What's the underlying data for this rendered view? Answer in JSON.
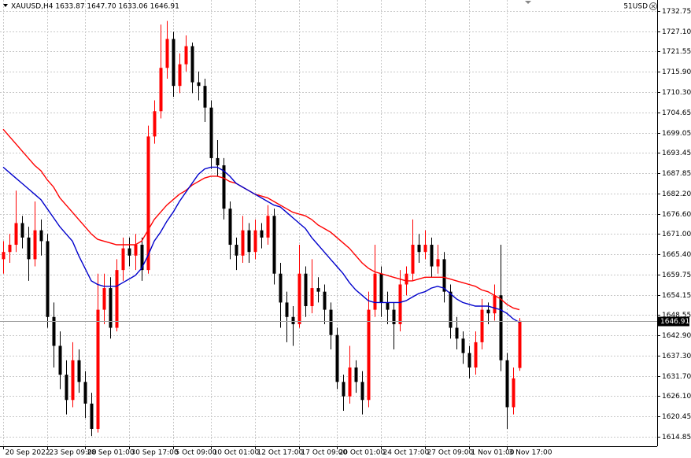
{
  "chart_data": {
    "type": "candlestick",
    "title": "XAUUSD,H4 1633.87 1647.70 1633.06 1646.91",
    "account_label": "51USD",
    "up_color": "#ff0000",
    "down_color": "#000000",
    "grid": true,
    "ylim": [
      1612.2,
      1735.8
    ],
    "yticks": [
      1732.75,
      {
        "value": 1727.1,
        "label": "1727.10"
      },
      1721.55,
      {
        "value": 1715.9,
        "label": "1715.90"
      },
      {
        "value": 1710.3,
        "label": "1710.30"
      },
      1704.65,
      1699.05,
      1693.45,
      1687.85,
      {
        "value": 1682.2,
        "label": "1682.20"
      },
      {
        "value": 1676.6,
        "label": "1676.60"
      },
      {
        "value": 1671,
        "label": "1671.00"
      },
      {
        "value": 1665.4,
        "label": "1665.40"
      },
      1659.75,
      1654.15,
      1648.55,
      {
        "value": 1642.9,
        "label": "1642.90"
      },
      {
        "value": 1637.3,
        "label": "1637.30"
      },
      {
        "value": 1631.7,
        "label": "1631.70"
      },
      {
        "value": 1626.1,
        "label": "1626.10"
      },
      1620.45,
      1614.85
    ],
    "categories": [
      "20 Sep 2022",
      null,
      null,
      null,
      null,
      null,
      null,
      "23 Sep 09:00",
      null,
      null,
      null,
      null,
      null,
      "28 Sep 01:00",
      null,
      null,
      null,
      null,
      null,
      null,
      "30 Sep 17:00",
      null,
      null,
      null,
      null,
      null,
      null,
      "5 Oct 09:00",
      null,
      null,
      null,
      null,
      null,
      "10 Oct 01:00",
      null,
      null,
      null,
      null,
      null,
      null,
      "12 Oct 17:00",
      null,
      null,
      null,
      null,
      null,
      null,
      "17 Oct 09:00",
      null,
      null,
      null,
      null,
      null,
      "20 Oct 01:00",
      null,
      null,
      null,
      null,
      null,
      null,
      "24 Oct 17:00",
      null,
      null,
      null,
      null,
      null,
      null,
      "27 Oct 09:00",
      null,
      null,
      null,
      null,
      null,
      null,
      "1 Nov 01:00",
      null,
      null,
      null,
      null,
      null,
      "3 Nov 17:00",
      null,
      null
    ],
    "ohlc": [
      [
        1664,
        1669,
        1660,
        1666
      ],
      [
        1666,
        1671,
        1663,
        1668
      ],
      [
        1668,
        1683,
        1666,
        1674
      ],
      [
        1674,
        1676,
        1667,
        1670
      ],
      [
        1670,
        1673,
        1658,
        1664
      ],
      [
        1664,
        1680,
        1662,
        1672
      ],
      [
        1672,
        1675,
        1665,
        1669
      ],
      [
        1669,
        1671,
        1645,
        1648
      ],
      [
        1648,
        1652,
        1634,
        1640
      ],
      [
        1640,
        1644,
        1628,
        1632
      ],
      [
        1632,
        1636,
        1621,
        1625
      ],
      [
        1625,
        1641,
        1623,
        1636
      ],
      [
        1636,
        1639,
        1627,
        1630
      ],
      [
        1630,
        1633,
        1620,
        1624
      ],
      [
        1624,
        1627,
        1615,
        1617
      ],
      [
        1617,
        1660,
        1616,
        1650
      ],
      [
        1650,
        1660,
        1646,
        1656
      ],
      [
        1656,
        1659,
        1642,
        1645
      ],
      [
        1645,
        1664,
        1644,
        1661
      ],
      [
        1661,
        1670,
        1658,
        1667
      ],
      [
        1667,
        1670,
        1662,
        1665
      ],
      [
        1665,
        1671,
        1661,
        1668
      ],
      [
        1668,
        1670,
        1658,
        1661
      ],
      [
        1661,
        1701,
        1660,
        1698
      ],
      [
        1698,
        1708,
        1696,
        1705
      ],
      [
        1705,
        1729,
        1703,
        1717
      ],
      [
        1717,
        1730,
        1714,
        1725
      ],
      [
        1725,
        1727,
        1709,
        1712
      ],
      [
        1712,
        1721,
        1710,
        1718
      ],
      [
        1718,
        1726,
        1716,
        1723
      ],
      [
        1723,
        1724,
        1710,
        1713
      ],
      [
        1713,
        1716,
        1708,
        1712
      ],
      [
        1712,
        1714,
        1702,
        1706
      ],
      [
        1706,
        1708,
        1689,
        1692
      ],
      [
        1692,
        1697,
        1687,
        1690
      ],
      [
        1690,
        1692,
        1675,
        1678
      ],
      [
        1678,
        1680,
        1664,
        1668
      ],
      [
        1668,
        1670,
        1661,
        1665
      ],
      [
        1665,
        1676,
        1663,
        1672
      ],
      [
        1672,
        1674,
        1663,
        1666
      ],
      [
        1666,
        1675,
        1664,
        1672
      ],
      [
        1672,
        1674,
        1667,
        1670
      ],
      [
        1670,
        1679,
        1668,
        1676
      ],
      [
        1676,
        1678,
        1657,
        1660
      ],
      [
        1660,
        1663,
        1645,
        1652
      ],
      [
        1652,
        1655,
        1641,
        1648
      ],
      [
        1648,
        1651,
        1640,
        1646
      ],
      [
        1646,
        1668,
        1645,
        1660
      ],
      [
        1660,
        1662,
        1648,
        1651
      ],
      [
        1651,
        1664,
        1649,
        1656
      ],
      [
        1656,
        1659,
        1652,
        1655
      ],
      [
        1655,
        1657,
        1646,
        1650
      ],
      [
        1650,
        1652,
        1639,
        1643
      ],
      [
        1643,
        1645,
        1628,
        1630
      ],
      [
        1630,
        1632,
        1622,
        1626
      ],
      [
        1626,
        1640,
        1624,
        1634
      ],
      [
        1634,
        1636,
        1627,
        1630
      ],
      [
        1630,
        1633,
        1621,
        1625
      ],
      [
        1625,
        1655,
        1623,
        1650
      ],
      [
        1650,
        1668,
        1648,
        1660
      ],
      [
        1660,
        1662,
        1648,
        1652
      ],
      [
        1652,
        1655,
        1646,
        1650
      ],
      [
        1650,
        1652,
        1639,
        1646
      ],
      [
        1646,
        1661,
        1644,
        1657
      ],
      [
        1657,
        1662,
        1654,
        1660
      ],
      [
        1660,
        1675,
        1658,
        1668
      ],
      [
        1668,
        1671,
        1663,
        1666
      ],
      [
        1666,
        1672,
        1664,
        1668
      ],
      [
        1668,
        1670,
        1659,
        1662
      ],
      [
        1662,
        1668,
        1660,
        1664
      ],
      [
        1664,
        1666,
        1652,
        1655
      ],
      [
        1655,
        1657,
        1642,
        1645
      ],
      [
        1645,
        1648,
        1639,
        1642
      ],
      [
        1642,
        1644,
        1635,
        1638
      ],
      [
        1638,
        1640,
        1631,
        1634
      ],
      [
        1634,
        1644,
        1632,
        1641
      ],
      [
        1641,
        1653,
        1639,
        1650
      ],
      [
        1650,
        1652,
        1646,
        1649
      ],
      [
        1649,
        1657,
        1647,
        1654
      ],
      [
        1654,
        1668,
        1633,
        1636
      ],
      [
        1636,
        1638,
        1617,
        1623
      ],
      [
        1623,
        1634,
        1621,
        1631
      ],
      [
        1633.87,
        1647.7,
        1633.06,
        1646.91
      ]
    ],
    "series": [
      {
        "color": "#ff0000",
        "values": [
          1700,
          1698,
          1696,
          1694,
          1692,
          1690,
          1688.5,
          1686,
          1684,
          1681,
          1679,
          1677,
          1675,
          1673,
          1671,
          1669.5,
          1669,
          1668.5,
          1668,
          1668,
          1668,
          1668,
          1669,
          1672,
          1675,
          1677,
          1679,
          1680.5,
          1682,
          1683,
          1684.5,
          1685.5,
          1686.5,
          1687,
          1687,
          1686.5,
          1685.5,
          1685,
          1684,
          1683,
          1682,
          1681.5,
          1681,
          1680,
          1679,
          1678,
          1677,
          1676.5,
          1676,
          1675,
          1673.5,
          1672.5,
          1671.5,
          1670,
          1668.5,
          1667,
          1665,
          1663,
          1661.5,
          1660.5,
          1660,
          1659.5,
          1659,
          1658.5,
          1658,
          1658,
          1658.5,
          1659,
          1659,
          1659,
          1659,
          1658.5,
          1658,
          1657.5,
          1657,
          1656.5,
          1655.5,
          1655,
          1654,
          1653,
          1651.5,
          1650.5,
          1650
        ]
      },
      {
        "color": "#0000cc",
        "values": [
          1689.5,
          1688,
          1686.5,
          1685,
          1683.5,
          1682,
          1680.5,
          1678,
          1675.5,
          1673,
          1671,
          1669,
          1665,
          1661.5,
          1658,
          1657,
          1656.5,
          1656.5,
          1656.5,
          1657.5,
          1658.5,
          1659.5,
          1661.5,
          1665,
          1669,
          1671.5,
          1674.5,
          1677,
          1680,
          1682.5,
          1685,
          1687.5,
          1689,
          1689.5,
          1689.5,
          1688.5,
          1687,
          1685,
          1684,
          1683,
          1682,
          1681,
          1680,
          1679,
          1678.5,
          1677,
          1675.5,
          1674,
          1672.5,
          1670,
          1668,
          1666,
          1664,
          1662,
          1660,
          1657.5,
          1655.5,
          1654,
          1652.5,
          1652,
          1652,
          1652,
          1652,
          1652,
          1652.5,
          1653.5,
          1654.5,
          1655,
          1656,
          1656.5,
          1656,
          1654.5,
          1653,
          1652,
          1651.5,
          1651,
          1651,
          1651,
          1650.5,
          1650,
          1649,
          1647.5,
          1646.5
        ]
      }
    ]
  }
}
